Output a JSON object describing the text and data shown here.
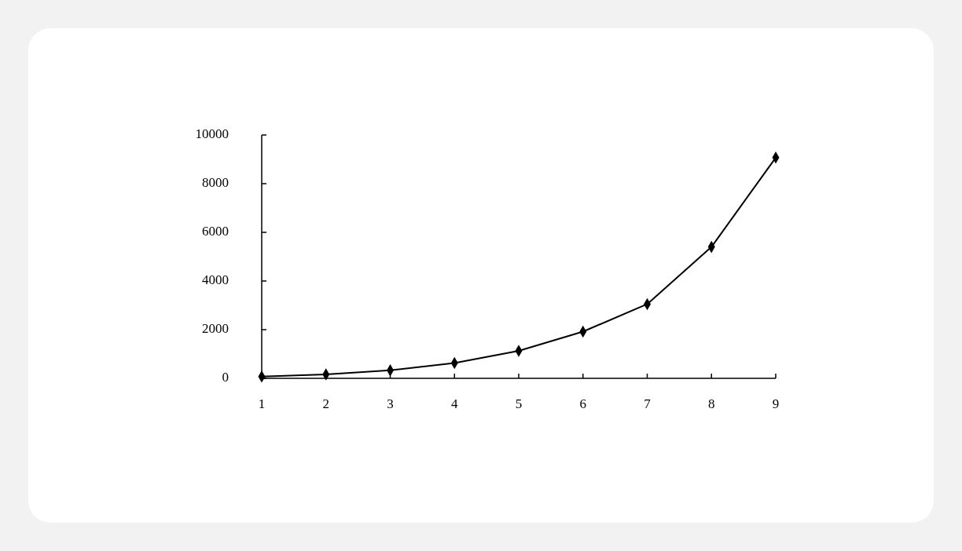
{
  "chart_data": {
    "type": "line",
    "x": [
      1,
      2,
      3,
      4,
      5,
      6,
      7,
      8,
      9
    ],
    "series": [
      {
        "color": "#000000",
        "values": [
          70,
          160,
          330,
          630,
          1130,
          1920,
          3050,
          5400,
          9070
        ]
      }
    ],
    "xlim": [
      1,
      9
    ],
    "xticks": [
      1,
      2,
      3,
      4,
      5,
      6,
      7,
      8,
      9
    ],
    "ylim": [
      0,
      10000
    ],
    "yticks": [
      0,
      2000,
      4000,
      6000,
      8000,
      10000
    ],
    "grid": false,
    "marker": "diamond",
    "line_style": "solid"
  }
}
